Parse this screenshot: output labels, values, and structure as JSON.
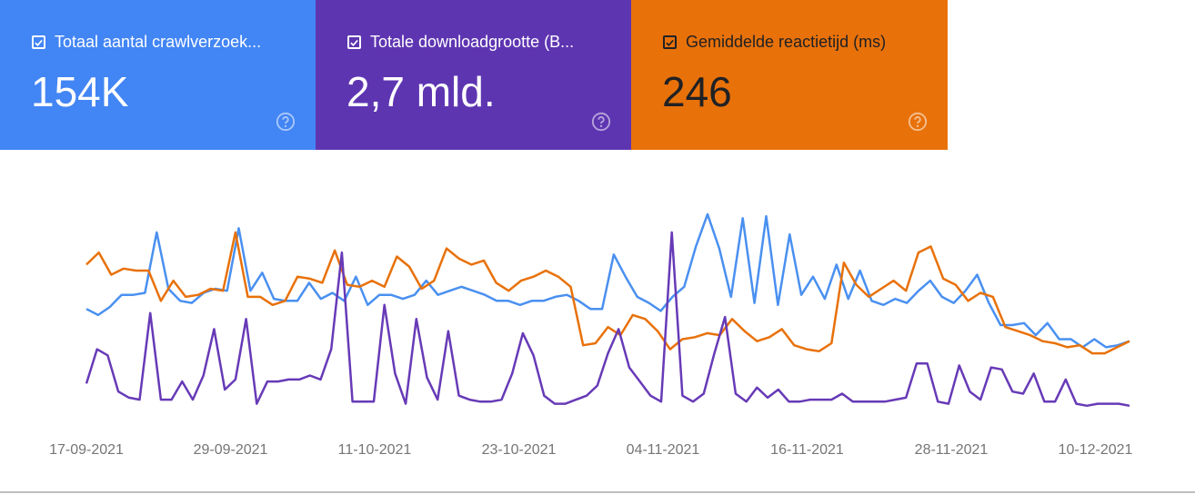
{
  "cards": [
    {
      "label": "Totaal aantal crawlverzoek...",
      "value": "154K",
      "bg": "#4285f4",
      "line": "#4a90f0"
    },
    {
      "label": "Totale downloadgrootte (B...",
      "value": "2,7 mld.",
      "bg": "#5e35b1",
      "line": "#673ab7"
    },
    {
      "label": "Gemiddelde reactietijd (ms)",
      "value": "246",
      "bg": "#e8710a",
      "line": "#e8710a"
    }
  ],
  "chart_data": {
    "type": "line",
    "x_tick_labels": [
      "17-09-2021",
      "29-09-2021",
      "11-10-2021",
      "23-10-2021",
      "04-11-2021",
      "16-11-2021",
      "28-11-2021",
      "10-12-2021"
    ],
    "x_start": "17-09-2021",
    "x_end": "14-12-2021",
    "ylim": [
      0,
      100
    ],
    "grid": false,
    "series": [
      {
        "name": "Totaal aantal crawlverzoek...",
        "color": "#4a90f0",
        "values": [
          49,
          46,
          50,
          56,
          56,
          57,
          87,
          59,
          53,
          52,
          57,
          59,
          58,
          89,
          58,
          67,
          54,
          53,
          53,
          62,
          54,
          57,
          53,
          65,
          51,
          56,
          56,
          54,
          56,
          63,
          56,
          58,
          60,
          58,
          56,
          53,
          53,
          51,
          53,
          53,
          55,
          56,
          53,
          49,
          49,
          76,
          65,
          55,
          52,
          48,
          55,
          60,
          80,
          96,
          79,
          55,
          94,
          52,
          95,
          51,
          86,
          56,
          65,
          54,
          71,
          54,
          68,
          53,
          51,
          54,
          52,
          58,
          63,
          55,
          52,
          58,
          66,
          52,
          41,
          41,
          42,
          36,
          42,
          34,
          34,
          30,
          34,
          30,
          31,
          33
        ]
      },
      {
        "name": "Gemiddelde reactietijd (ms)",
        "color": "#e8710a",
        "values": [
          71,
          77,
          66,
          69,
          68,
          68,
          53,
          63,
          55,
          56,
          59,
          58,
          87,
          55,
          55,
          51,
          53,
          65,
          64,
          62,
          78,
          61,
          60,
          63,
          60,
          75,
          70,
          59,
          63,
          79,
          74,
          71,
          73,
          62,
          58,
          63,
          65,
          68,
          65,
          60,
          31,
          32,
          40,
          36,
          46,
          44,
          38,
          29,
          34,
          35,
          37,
          36,
          44,
          38,
          33,
          35,
          39,
          31,
          29,
          28,
          32,
          72,
          61,
          55,
          59,
          63,
          58,
          77,
          80,
          64,
          61,
          53,
          57,
          55,
          40,
          38,
          36,
          33,
          32,
          30,
          31,
          27,
          27,
          30,
          33
        ]
      },
      {
        "name": "Totale downloadgrootte (B...",
        "color": "#673ab7",
        "values": [
          12,
          29,
          26,
          8,
          5,
          4,
          47,
          4,
          4,
          13,
          4,
          16,
          39,
          9,
          14,
          44,
          2,
          13,
          13,
          14,
          14,
          16,
          14,
          29,
          77,
          3,
          3,
          3,
          51,
          17,
          2,
          44,
          15,
          4,
          38,
          6,
          4,
          3,
          3,
          4,
          17,
          37,
          26,
          6,
          2,
          2,
          4,
          6,
          11,
          27,
          39,
          20,
          13,
          6,
          3,
          87,
          6,
          3,
          7,
          27,
          45,
          7,
          3,
          10,
          5,
          9,
          3,
          3,
          4,
          4,
          4,
          7,
          3,
          3,
          3,
          3,
          4,
          5,
          22,
          22,
          3,
          2,
          21,
          8,
          4,
          20,
          19,
          8,
          7,
          17,
          3,
          3,
          14,
          2,
          1,
          2,
          2,
          2,
          1
        ]
      }
    ]
  }
}
